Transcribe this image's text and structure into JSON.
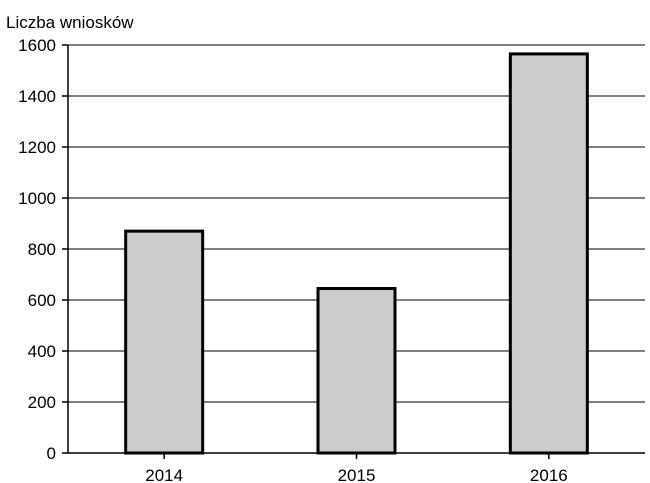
{
  "chart_data": {
    "type": "bar",
    "title": "",
    "xlabel": "",
    "ylabel": "Liczba wniosków",
    "categories": [
      "2014",
      "2015",
      "2016"
    ],
    "values": [
      870,
      645,
      1565
    ],
    "ylim": [
      0,
      1600
    ],
    "yticks": [
      0,
      200,
      400,
      600,
      800,
      1000,
      1200,
      1400,
      1600
    ],
    "grid": true,
    "legend": "none",
    "colors": {
      "bar_fill": "#cccccc",
      "bar_stroke": "#000000",
      "grid": "#000000"
    }
  }
}
